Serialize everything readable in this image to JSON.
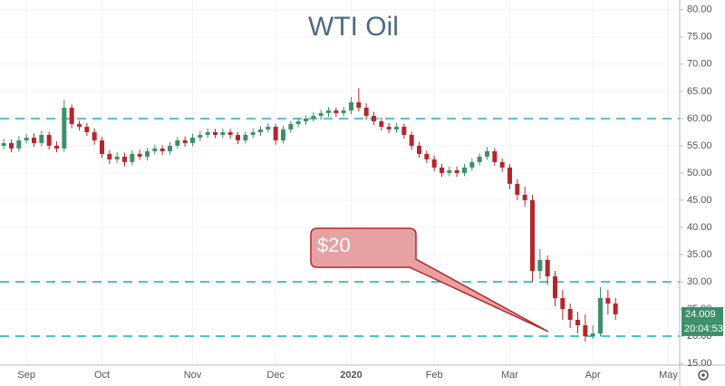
{
  "chart_data": {
    "type": "candlestick",
    "title": "WTI Oil",
    "categories": [
      null,
      null,
      null,
      "Sep",
      null,
      null,
      null,
      null,
      null,
      null,
      null,
      null,
      null,
      "Oct",
      null,
      null,
      null,
      null,
      null,
      null,
      null,
      null,
      null,
      null,
      null,
      "Nov",
      null,
      null,
      null,
      null,
      null,
      null,
      null,
      null,
      null,
      null,
      "Dec",
      null,
      null,
      null,
      null,
      null,
      null,
      null,
      null,
      null,
      "2020",
      null,
      null,
      null,
      null,
      null,
      null,
      null,
      null,
      null,
      null,
      "Feb",
      null,
      null,
      null,
      null,
      null,
      null,
      null,
      null,
      null,
      "Mar",
      null,
      null,
      null,
      null,
      null,
      null,
      null,
      null,
      null,
      null,
      "Apr",
      null,
      null,
      null,
      null,
      null,
      null,
      null,
      null,
      null,
      "May",
      null
    ],
    "open": [
      55,
      55.5,
      54.5,
      56,
      56.5,
      55.5,
      57,
      55,
      54.5,
      62,
      59,
      58.5,
      57.5,
      56,
      53.5,
      52.5,
      53,
      52,
      53.5,
      53,
      54,
      54.5,
      54,
      55,
      56,
      55.5,
      56.5,
      57,
      57.5,
      57,
      57.5,
      57,
      56,
      57,
      57.5,
      58,
      58.5,
      56,
      58,
      59,
      59.5,
      60,
      60.5,
      61,
      61.5,
      61,
      61.5,
      63,
      62,
      60.5,
      59.5,
      58.5,
      58,
      58.5,
      57,
      55,
      53.5,
      52.5,
      51,
      50,
      50.5,
      50,
      51,
      52,
      53,
      54,
      52,
      51,
      48,
      46,
      45,
      32,
      34,
      31,
      27,
      25,
      23,
      22,
      20,
      20.5,
      27,
      26,
      null,
      null,
      null,
      null,
      null,
      null,
      null,
      null
    ],
    "high": [
      56.3,
      56.2,
      56.8,
      57.2,
      57.3,
      57.8,
      57.6,
      55.8,
      63.5,
      62.6,
      59.6,
      59.2,
      58.2,
      56.6,
      54.2,
      53.8,
      53.7,
      54.2,
      54.3,
      54.6,
      55.2,
      55.1,
      55.7,
      56.6,
      56.7,
      57.2,
      57.7,
      58.2,
      58.1,
      58.2,
      58.1,
      57.5,
      57.6,
      58.2,
      58.6,
      59.2,
      59,
      58.7,
      59.6,
      60.2,
      60.6,
      61.2,
      61.6,
      62.1,
      62,
      62.2,
      64,
      65.6,
      62.8,
      61.2,
      60.2,
      59.2,
      59.2,
      59.1,
      57.6,
      55.7,
      54.1,
      53.2,
      51.7,
      51.2,
      51.2,
      51.7,
      52.7,
      53.6,
      54.8,
      54.6,
      52.7,
      51.6,
      48.9,
      47.5,
      46,
      36,
      34.8,
      32,
      28.5,
      26,
      24.5,
      24,
      22,
      29,
      28.5,
      27,
      null,
      null,
      null,
      null,
      null,
      null,
      null,
      null
    ],
    "low": [
      54.3,
      53.8,
      53.9,
      55.4,
      54.8,
      54.9,
      54.3,
      53.8,
      53.9,
      58.2,
      57.8,
      56.8,
      55.2,
      52.8,
      51.6,
      51.8,
      51.2,
      51.4,
      52.4,
      52.3,
      53.4,
      53.3,
      53.4,
      54.4,
      54.8,
      54.9,
      55.8,
      56.4,
      56.4,
      56.4,
      56.3,
      55.3,
      55.4,
      56.4,
      56.8,
      57.4,
      55.2,
      55.4,
      57.4,
      58.4,
      58.8,
      59.4,
      59.8,
      60.3,
      60.3,
      60.4,
      60.8,
      61.3,
      59.8,
      58.8,
      57.8,
      57.3,
      57.4,
      56.3,
      54.2,
      52.8,
      51.8,
      50.3,
      49.3,
      49.4,
      49.3,
      49.4,
      50.4,
      51.4,
      52.4,
      51.3,
      50.2,
      47,
      45,
      43.8,
      30,
      30.5,
      29.5,
      25.5,
      23,
      21.5,
      20.5,
      19,
      19.5,
      20,
      24,
      23,
      null,
      null,
      null,
      null,
      null,
      null,
      null,
      null
    ],
    "close": [
      55.5,
      54.5,
      56,
      56.5,
      55.5,
      57,
      55,
      54.5,
      62,
      59,
      58.5,
      57.5,
      56,
      53.5,
      52.5,
      53,
      52,
      53.5,
      53,
      54,
      54.5,
      54,
      55,
      56,
      55.5,
      56.5,
      57,
      57.5,
      57,
      57.5,
      57,
      56,
      57,
      57.5,
      58,
      58.5,
      56,
      58,
      59,
      59.5,
      60,
      60.5,
      61,
      61.5,
      61,
      61.5,
      63,
      62,
      60.5,
      59.5,
      58.5,
      58,
      58.5,
      57,
      55,
      53.5,
      52.5,
      51,
      50,
      50.5,
      50,
      51,
      52,
      53,
      54,
      52,
      51,
      48,
      46,
      45,
      32,
      34,
      31,
      27,
      25,
      23,
      22,
      20,
      20.5,
      27,
      26,
      24.009,
      null,
      null,
      null,
      null,
      null,
      null,
      null,
      null
    ],
    "up_color": "#3d8f6a",
    "down_color": "#b5262b",
    "ylim": [
      15,
      81.8
    ],
    "yticks": [
      {
        "value": 15,
        "label": "15.00"
      },
      {
        "value": 20,
        "label": "20.00"
      },
      {
        "value": 25,
        "label": "25.00"
      },
      {
        "value": 30,
        "label": "30.00"
      },
      {
        "value": 35,
        "label": "35.00"
      },
      {
        "value": 40,
        "label": "40.00"
      },
      {
        "value": 45,
        "label": "45.00"
      },
      {
        "value": 50,
        "label": "50.00"
      },
      {
        "value": 55,
        "label": "55.00"
      },
      {
        "value": 60,
        "label": "60.00"
      },
      {
        "value": 65,
        "label": "65.00"
      },
      {
        "value": 70,
        "label": "70.00"
      },
      {
        "value": 75,
        "label": "75.00"
      },
      {
        "value": 80,
        "label": "80.00"
      }
    ],
    "grid": true,
    "levels": [
      60,
      30,
      20
    ],
    "level_color": "#4cc3c8",
    "annotation": "$20",
    "countdown": "20:04:53"
  }
}
